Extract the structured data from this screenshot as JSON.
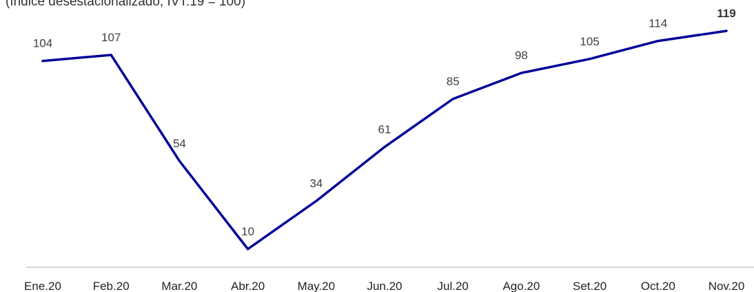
{
  "chart_data": {
    "type": "line",
    "subtitle": "(índice desestacionalizado, IVT.19 = 100)",
    "categories": [
      "Ene.20",
      "Feb.20",
      "Mar.20",
      "Abr.20",
      "May.20",
      "Jun.20",
      "Jul.20",
      "Ago.20",
      "Set.20",
      "Oct.20",
      "Nov.20"
    ],
    "values": [
      104,
      107,
      54,
      10,
      34,
      61,
      85,
      98,
      105,
      114,
      119
    ],
    "data_labels": [
      "104",
      "107",
      "54",
      "10",
      "34",
      "61",
      "85",
      "98",
      "105",
      "114",
      "119"
    ],
    "highlight_last_label": true,
    "line_color": "#000099",
    "xlabel": "",
    "ylabel": "",
    "grid": false,
    "legend": "none"
  }
}
